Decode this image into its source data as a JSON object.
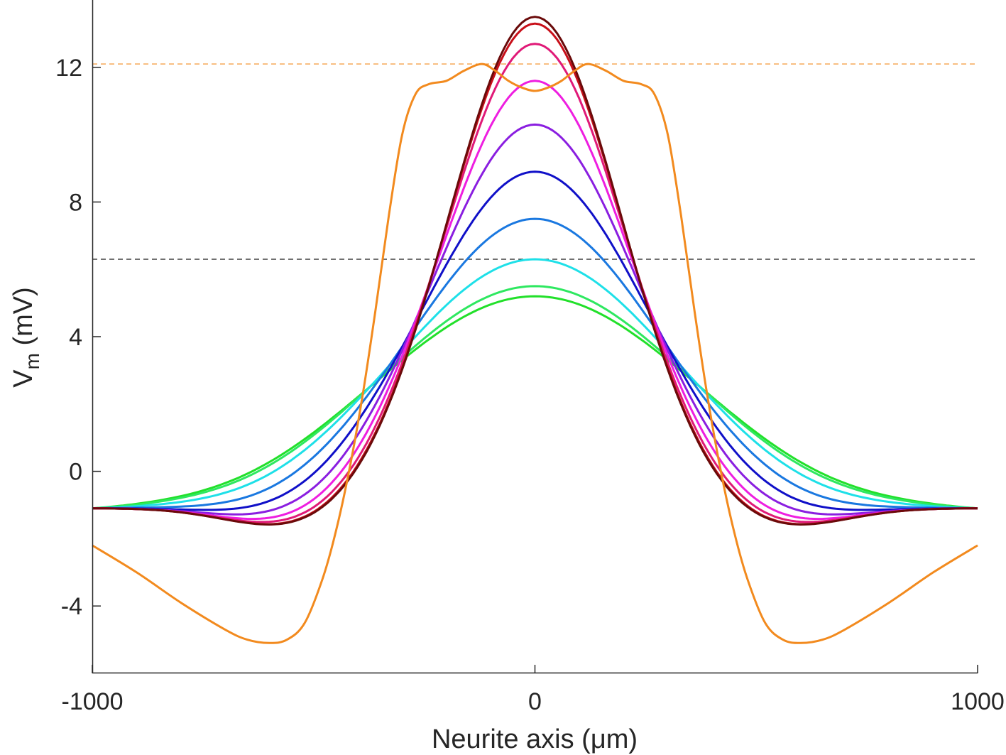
{
  "chart_data": {
    "type": "line",
    "title": "",
    "xlabel": "Neurite axis (μm)",
    "ylabel_main": "V",
    "ylabel_sub": "m",
    "ylabel_unit": " (mV)",
    "xlim": [
      -1000,
      1000
    ],
    "ylim": [
      -6,
      14
    ],
    "xticks": [
      -1000,
      0,
      1000
    ],
    "xtick_labels": [
      "-1000",
      "0",
      "1000"
    ],
    "yticks": [
      -4,
      0,
      4,
      8,
      12
    ],
    "ytick_labels": [
      "-4",
      "0",
      "4",
      "8",
      "12"
    ],
    "grid": false,
    "legend": "none",
    "reference_lines": [
      {
        "y": 12.1,
        "color": "#f28a1e",
        "style": "dashed"
      },
      {
        "y": 6.3,
        "color": "#1a1a1a",
        "style": "dashed"
      }
    ],
    "gaussian_series": {
      "baseline": -1.1,
      "edge_x": 1000,
      "curves": [
        {
          "color": "#22e02a",
          "peak": 5.2,
          "sigma": 360,
          "dip": 0.1,
          "dip_center": 640,
          "dip_width": 150
        },
        {
          "color": "#2ee860",
          "peak": 5.5,
          "sigma": 345,
          "dip": 0.1,
          "dip_center": 630,
          "dip_width": 150
        },
        {
          "color": "#1ee0e8",
          "peak": 6.3,
          "sigma": 315,
          "dip": 0.15,
          "dip_center": 610,
          "dip_width": 150
        },
        {
          "color": "#1a78e0",
          "peak": 7.5,
          "sigma": 280,
          "dip": 0.25,
          "dip_center": 590,
          "dip_width": 150
        },
        {
          "color": "#1010c8",
          "peak": 8.9,
          "sigma": 250,
          "dip": 0.35,
          "dip_center": 570,
          "dip_width": 150
        },
        {
          "color": "#8a1ee0",
          "peak": 10.3,
          "sigma": 228,
          "dip": 0.45,
          "dip_center": 560,
          "dip_width": 150
        },
        {
          "color": "#ee1ee0",
          "peak": 11.6,
          "sigma": 212,
          "dip": 0.55,
          "dip_center": 550,
          "dip_width": 150
        },
        {
          "color": "#e01a78",
          "peak": 12.7,
          "sigma": 200,
          "dip": 0.6,
          "dip_center": 545,
          "dip_width": 150
        },
        {
          "color": "#c8101a",
          "peak": 13.3,
          "sigma": 194,
          "dip": 0.65,
          "dip_center": 540,
          "dip_width": 150
        },
        {
          "color": "#6a0a0a",
          "peak": 13.5,
          "sigma": 192,
          "dip": 0.65,
          "dip_center": 540,
          "dip_width": 150
        }
      ]
    },
    "orange_series": {
      "color": "#f28a1e",
      "points": [
        [
          -1000,
          -2.2
        ],
        [
          -900,
          -3.0
        ],
        [
          -800,
          -3.9
        ],
        [
          -700,
          -4.7
        ],
        [
          -650,
          -5.0
        ],
        [
          -600,
          -5.1
        ],
        [
          -560,
          -5.0
        ],
        [
          -520,
          -4.5
        ],
        [
          -480,
          -3.2
        ],
        [
          -450,
          -1.8
        ],
        [
          -420,
          0.0
        ],
        [
          -390,
          2.2
        ],
        [
          -360,
          4.8
        ],
        [
          -330,
          7.6
        ],
        [
          -300,
          10.0
        ],
        [
          -270,
          11.2
        ],
        [
          -240,
          11.5
        ],
        [
          -200,
          11.6
        ],
        [
          -160,
          11.9
        ],
        [
          -120,
          12.1
        ],
        [
          -90,
          11.9
        ],
        [
          -60,
          11.6
        ],
        [
          -30,
          11.4
        ],
        [
          0,
          11.3
        ],
        [
          30,
          11.4
        ],
        [
          60,
          11.6
        ],
        [
          90,
          11.9
        ],
        [
          120,
          12.1
        ],
        [
          160,
          11.9
        ],
        [
          200,
          11.6
        ],
        [
          240,
          11.5
        ],
        [
          270,
          11.2
        ],
        [
          300,
          10.0
        ],
        [
          330,
          7.6
        ],
        [
          360,
          4.8
        ],
        [
          390,
          2.2
        ],
        [
          420,
          0.0
        ],
        [
          450,
          -1.8
        ],
        [
          480,
          -3.2
        ],
        [
          520,
          -4.5
        ],
        [
          560,
          -5.0
        ],
        [
          600,
          -5.1
        ],
        [
          650,
          -5.0
        ],
        [
          700,
          -4.7
        ],
        [
          800,
          -3.9
        ],
        [
          900,
          -3.0
        ],
        [
          1000,
          -2.2
        ]
      ]
    }
  }
}
